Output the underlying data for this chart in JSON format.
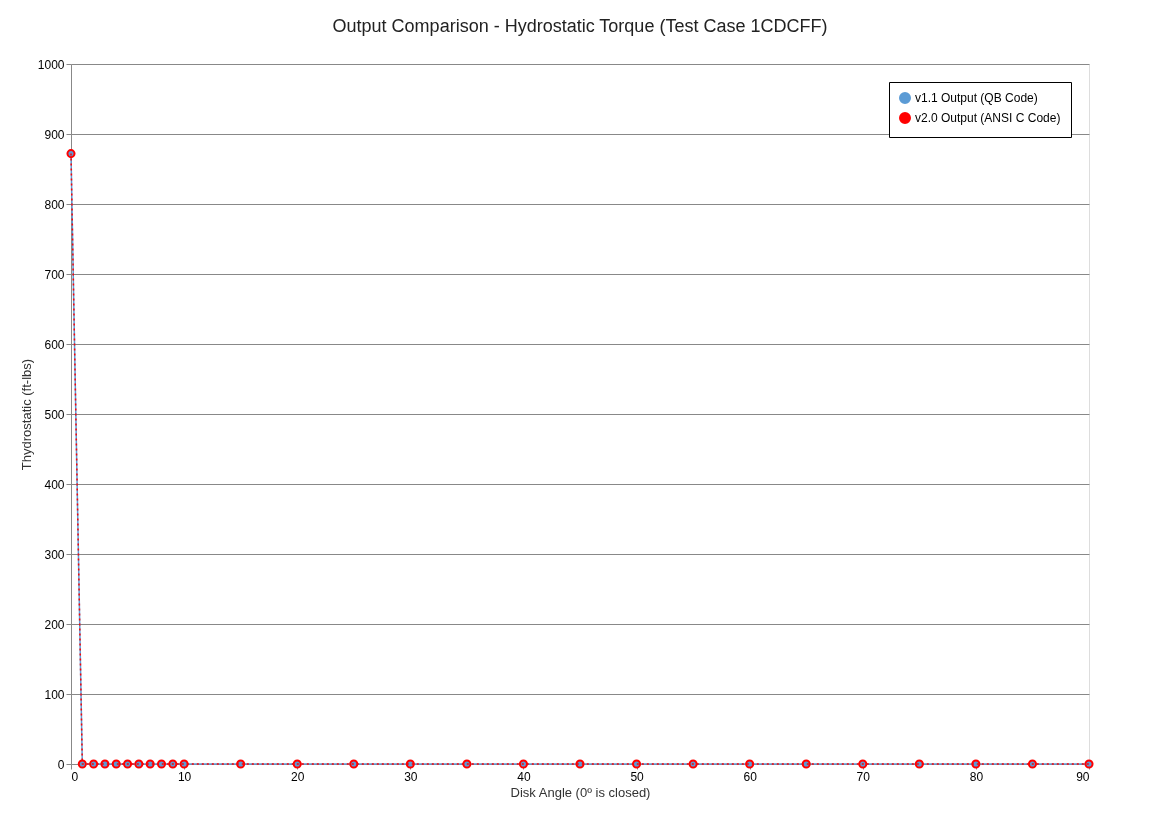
{
  "chart_data": {
    "type": "line",
    "title": "Output Comparison - Hydrostatic Torque (Test Case 1CDCFF)",
    "xlabel": "Disk Angle (0º is closed)",
    "ylabel": "Thydrostatic (ft-lbs)",
    "x": [
      0,
      1,
      2,
      3,
      4,
      5,
      6,
      7,
      8,
      9,
      10,
      15,
      20,
      25,
      30,
      35,
      40,
      45,
      50,
      55,
      60,
      65,
      70,
      75,
      80,
      85,
      90
    ],
    "series": [
      {
        "name": "v1.1 Output (QB Code)",
        "color": "#5b9bd5",
        "line_style": "solid",
        "values": [
          872,
          0,
          0,
          0,
          0,
          0,
          0,
          0,
          0,
          0,
          0,
          0,
          0,
          0,
          0,
          0,
          0,
          0,
          0,
          0,
          0,
          0,
          0,
          0,
          0,
          0,
          0
        ]
      },
      {
        "name": "v2.0 Output (ANSI C Code)",
        "color": "#ff0000",
        "line_style": "dotted",
        "values": [
          872,
          0,
          0,
          0,
          0,
          0,
          0,
          0,
          0,
          0,
          0,
          0,
          0,
          0,
          0,
          0,
          0,
          0,
          0,
          0,
          0,
          0,
          0,
          0,
          0,
          0,
          0
        ]
      }
    ],
    "xlim": [
      0,
      90
    ],
    "xticks": [
      0,
      10,
      20,
      30,
      40,
      50,
      60,
      70,
      80,
      90
    ],
    "ylim": [
      0,
      1000
    ],
    "yticks": [
      0,
      100,
      200,
      300,
      400,
      500,
      600,
      700,
      800,
      900,
      1000
    ],
    "grid": "y",
    "legend": "top right",
    "marker": "circle"
  }
}
